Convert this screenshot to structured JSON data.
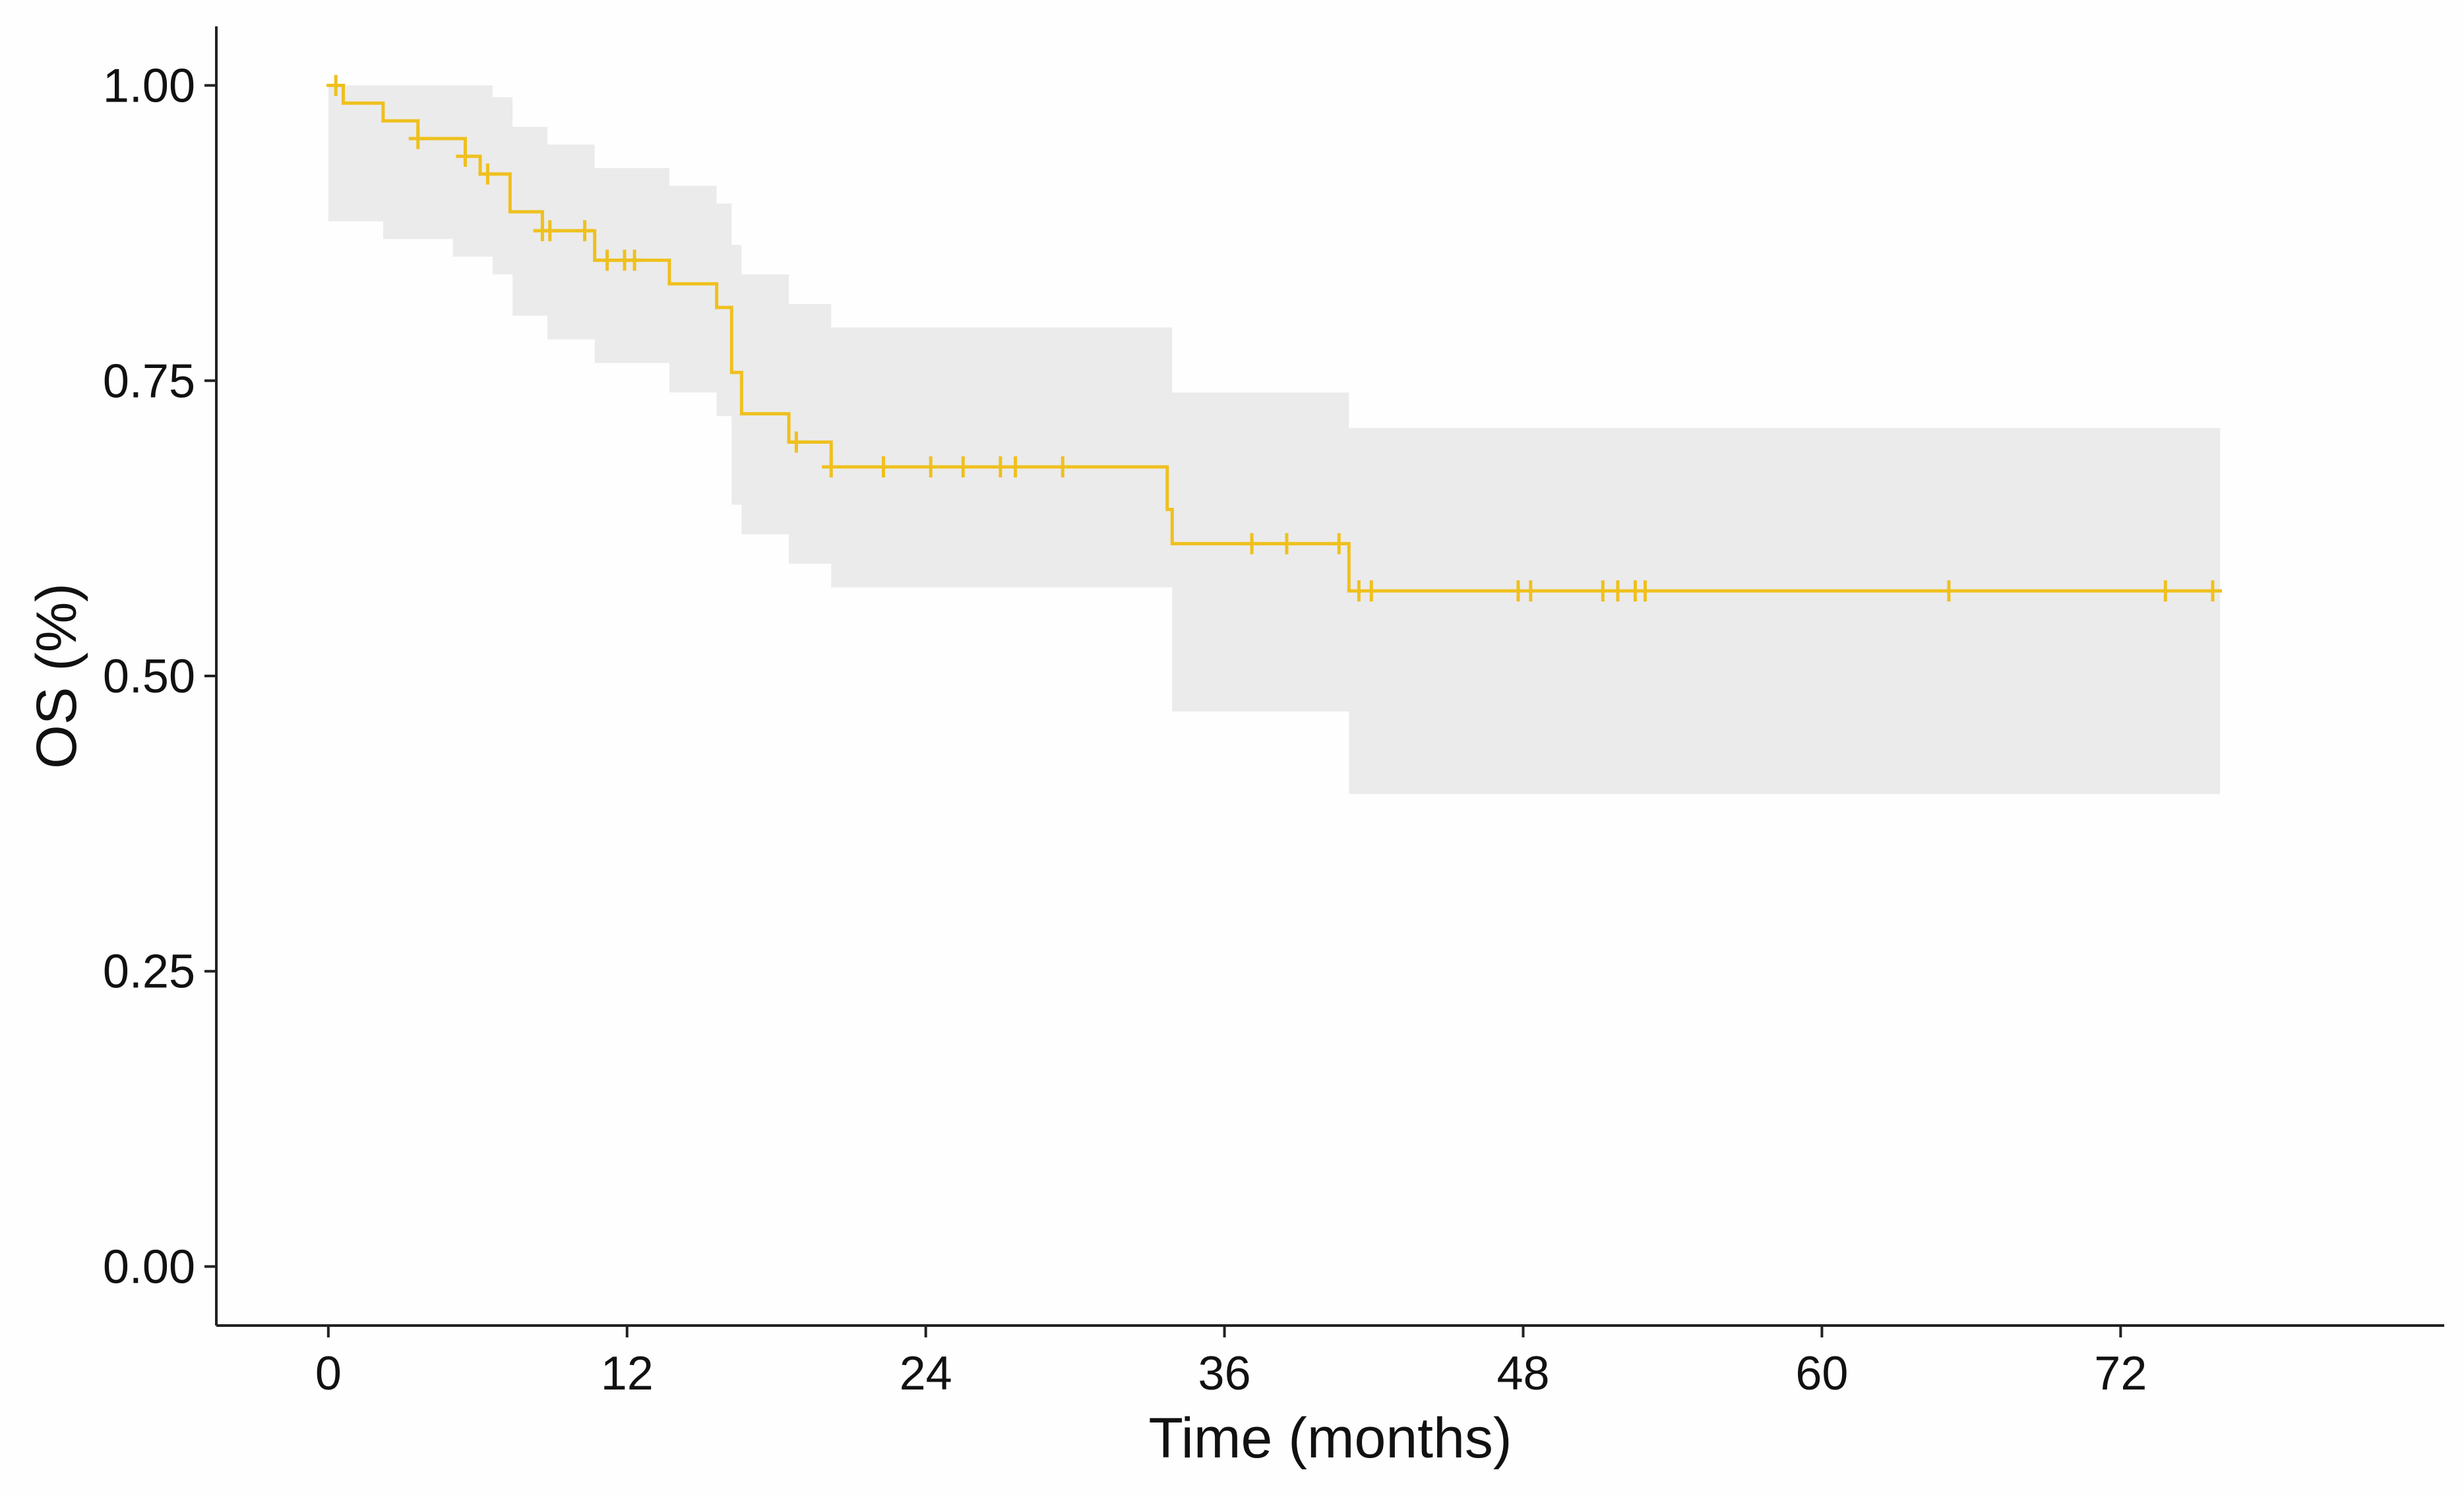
{
  "chart_data": {
    "type": "line",
    "subtype": "kaplan-meier",
    "title": "",
    "xlabel": "Time (months)",
    "ylabel": "OS (%)",
    "xlim": [
      -4.5,
      85
    ],
    "ylim": [
      -0.05,
      1.05
    ],
    "x_ticks": [
      {
        "value": 0,
        "label": "0"
      },
      {
        "value": 12,
        "label": "12"
      },
      {
        "value": 24,
        "label": "24"
      },
      {
        "value": 36,
        "label": "36"
      },
      {
        "value": 48,
        "label": "48"
      },
      {
        "value": 60,
        "label": "60"
      },
      {
        "value": 72,
        "label": "72"
      }
    ],
    "y_ticks": [
      {
        "value": 0,
        "label": "0.00"
      },
      {
        "value": 0.25,
        "label": "0.25"
      },
      {
        "value": 0.5,
        "label": "0.50"
      },
      {
        "value": 0.75,
        "label": "0.75"
      },
      {
        "value": 1.0,
        "label": "1.00"
      }
    ],
    "grid": false,
    "legend": "none",
    "colors": {
      "curve": "#efc01e",
      "confidence_band": "#ebebeb",
      "axis": "#222222"
    },
    "series": [
      {
        "survival_steps": [
          [
            0,
            1.0
          ],
          [
            0.6,
            0.985
          ],
          [
            2.2,
            0.97
          ],
          [
            3.6,
            0.955
          ],
          [
            5.5,
            0.94
          ],
          [
            6.1,
            0.925
          ],
          [
            7.3,
            0.893
          ],
          [
            8.6,
            0.877
          ],
          [
            10.7,
            0.852
          ],
          [
            13.7,
            0.832
          ],
          [
            15.6,
            0.812
          ],
          [
            16.2,
            0.757
          ],
          [
            16.6,
            0.722
          ],
          [
            18.5,
            0.698
          ],
          [
            20.2,
            0.677
          ],
          [
            33.7,
            0.641
          ],
          [
            33.9,
            0.612
          ],
          [
            41.0,
            0.572
          ],
          [
            76,
            0.572
          ]
        ],
        "ci_steps": [
          [
            0,
            1.0,
            0.885
          ],
          [
            2.2,
            1.0,
            0.87
          ],
          [
            5.0,
            1.0,
            0.855
          ],
          [
            6.6,
            0.99,
            0.84
          ],
          [
            7.4,
            0.965,
            0.805
          ],
          [
            8.8,
            0.95,
            0.785
          ],
          [
            10.7,
            0.93,
            0.765
          ],
          [
            13.7,
            0.915,
            0.74
          ],
          [
            15.6,
            0.9,
            0.72
          ],
          [
            16.2,
            0.865,
            0.645
          ],
          [
            16.6,
            0.84,
            0.62
          ],
          [
            18.5,
            0.815,
            0.595
          ],
          [
            20.2,
            0.795,
            0.575
          ],
          [
            33.9,
            0.74,
            0.47
          ],
          [
            41.0,
            0.71,
            0.4
          ],
          [
            76,
            0.71,
            0.4
          ]
        ],
        "censor_times": [
          0.3,
          3.6,
          5.5,
          6.4,
          8.6,
          8.9,
          10.3,
          11.2,
          11.9,
          12.3,
          18.8,
          20.2,
          22.3,
          24.2,
          25.5,
          27.0,
          27.6,
          29.5,
          37.1,
          38.5,
          40.6,
          41.4,
          41.9,
          47.8,
          48.3,
          51.2,
          51.8,
          52.5,
          52.9,
          65.1,
          73.8,
          75.7
        ]
      }
    ]
  }
}
